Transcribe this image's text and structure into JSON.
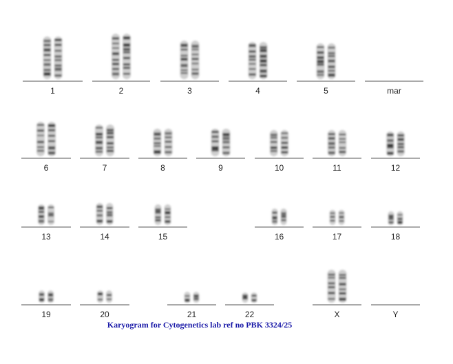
{
  "caption": "Karyogram for Cytogenetics lab ref no PBK 3324/25",
  "slots": [
    {
      "label": "1"
    },
    {
      "label": "2"
    },
    {
      "label": "3"
    },
    {
      "label": "4"
    },
    {
      "label": "5"
    },
    {
      "label": "mar"
    },
    {
      "label": "6"
    },
    {
      "label": "7"
    },
    {
      "label": "8"
    },
    {
      "label": "9"
    },
    {
      "label": "10"
    },
    {
      "label": "11"
    },
    {
      "label": "12"
    },
    {
      "label": "13"
    },
    {
      "label": "14"
    },
    {
      "label": "15"
    },
    {
      "label": "16"
    },
    {
      "label": "17"
    },
    {
      "label": "18"
    },
    {
      "label": "19"
    },
    {
      "label": "20"
    },
    {
      "label": "21"
    },
    {
      "label": "22"
    },
    {
      "label": "X"
    },
    {
      "label": "Y"
    }
  ],
  "colors": {
    "baseline": "#555555",
    "chromosome": "#333333",
    "caption": "#1a1aa8"
  }
}
